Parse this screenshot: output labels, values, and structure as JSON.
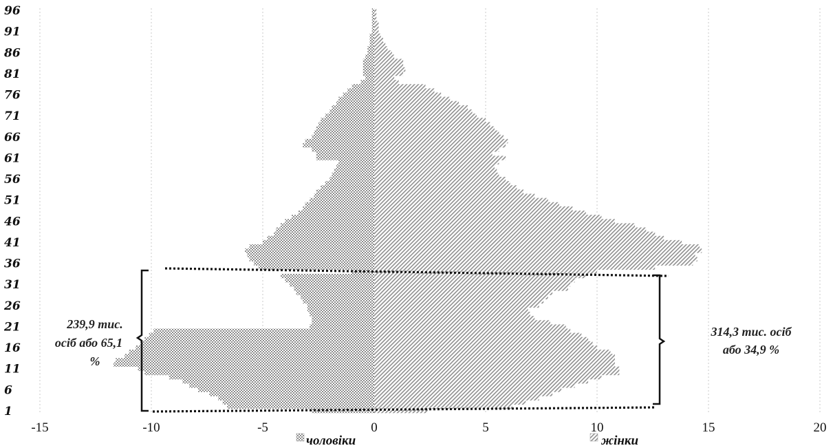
{
  "chart_data": {
    "type": "bar",
    "orientation": "horizontal",
    "style": "population-pyramid",
    "title": "",
    "xlabel": "",
    "ylabel": "",
    "xlim": [
      -15,
      20
    ],
    "x_ticks": [
      "-15",
      "-10",
      "-5",
      "0",
      "5",
      "10",
      "15",
      "20"
    ],
    "y_tick_labels": [
      "1",
      "6",
      "11",
      "16",
      "21",
      "26",
      "31",
      "36",
      "41",
      "46",
      "51",
      "56",
      "61",
      "66",
      "71",
      "76",
      "81",
      "86",
      "91",
      "96"
    ],
    "ages": [
      1,
      2,
      3,
      4,
      5,
      6,
      7,
      8,
      9,
      10,
      11,
      12,
      13,
      14,
      15,
      16,
      17,
      18,
      19,
      20,
      21,
      22,
      23,
      24,
      25,
      26,
      27,
      28,
      29,
      30,
      31,
      32,
      33,
      34,
      35,
      36,
      37,
      38,
      39,
      40,
      41,
      42,
      43,
      44,
      45,
      46,
      47,
      48,
      49,
      50,
      51,
      52,
      53,
      54,
      55,
      56,
      57,
      58,
      59,
      60,
      61,
      62,
      63,
      64,
      65,
      66,
      67,
      68,
      69,
      70,
      71,
      72,
      73,
      74,
      75,
      76,
      77,
      78,
      79,
      80,
      81,
      82,
      83,
      84,
      85,
      86,
      87,
      88,
      89,
      90,
      91,
      92,
      93,
      94,
      95,
      96
    ],
    "series": [
      {
        "name": "чоловіки",
        "values": [
          -2.8,
          -6.6,
          -6.8,
          -7.0,
          -7.4,
          -7.9,
          -8.3,
          -8.6,
          -9.2,
          -10.3,
          -10.6,
          -11.7,
          -11.6,
          -11.2,
          -11.0,
          -10.7,
          -10.5,
          -10.3,
          -10.1,
          -9.9,
          -2.9,
          -2.8,
          -2.8,
          -2.9,
          -3.0,
          -3.0,
          -3.2,
          -3.3,
          -3.5,
          -3.6,
          -3.8,
          -4.0,
          -4.2,
          -1.0,
          -5.2,
          -5.4,
          -5.6,
          -5.7,
          -5.8,
          -5.6,
          -5.0,
          -4.8,
          -4.5,
          -4.4,
          -4.2,
          -4.0,
          -3.7,
          -3.4,
          -3.2,
          -3.1,
          -2.9,
          -2.7,
          -2.6,
          -2.4,
          -2.2,
          -2.0,
          -1.9,
          -1.8,
          -1.7,
          -1.6,
          -2.6,
          -2.6,
          -2.8,
          -3.2,
          -3.1,
          -2.8,
          -2.7,
          -2.6,
          -2.5,
          -2.4,
          -2.2,
          -2.0,
          -1.9,
          -1.7,
          -1.6,
          -1.4,
          -1.2,
          -1.0,
          -0.6,
          -0.4,
          -0.5,
          -0.5,
          -0.5,
          -0.5,
          -0.4,
          -0.3,
          -0.3,
          -0.2,
          -0.2,
          -0.2,
          -0.1,
          -0.1,
          -0.1,
          -0.1,
          -0.1,
          -0.1
        ],
        "pattern": "checker"
      },
      {
        "name": "жінки",
        "values": [
          2.4,
          6.2,
          6.8,
          7.4,
          8.0,
          8.4,
          9.0,
          9.6,
          10.2,
          11.0,
          11.0,
          10.8,
          10.8,
          10.8,
          10.6,
          10.0,
          9.8,
          9.6,
          9.3,
          8.8,
          8.6,
          7.9,
          7.2,
          7.0,
          6.9,
          7.4,
          7.6,
          7.8,
          8.0,
          8.7,
          8.8,
          9.0,
          9.5,
          10.0,
          12.6,
          14.3,
          14.5,
          14.4,
          14.7,
          14.6,
          13.8,
          13.0,
          12.6,
          12.2,
          11.7,
          10.8,
          10.2,
          9.5,
          8.9,
          8.3,
          7.8,
          7.2,
          6.7,
          6.4,
          6.1,
          5.9,
          5.6,
          5.5,
          5.4,
          5.6,
          5.9,
          5.3,
          5.6,
          5.9,
          6.0,
          5.8,
          5.6,
          5.4,
          5.2,
          5.0,
          4.6,
          4.4,
          4.2,
          3.8,
          3.4,
          3.0,
          2.7,
          2.3,
          1.1,
          0.9,
          1.3,
          1.4,
          1.3,
          1.3,
          0.9,
          0.8,
          0.6,
          0.5,
          0.4,
          0.3,
          0.2,
          0.2,
          0.2,
          0.1,
          0.1,
          0.1
        ],
        "pattern": "diagonal"
      }
    ],
    "legend": {
      "placement": "bottom",
      "items": [
        "чоловіки",
        "жінки"
      ]
    },
    "annotations": [
      {
        "id": "left",
        "lines": [
          "239,9 тис.",
          "осіб або 65,1",
          "%"
        ]
      },
      {
        "id": "right",
        "lines": [
          "314,3 тис. осіб",
          "або 34,9 %"
        ]
      }
    ],
    "grid": "vertical-dotted",
    "colors": {
      "men": "#9a9a9a",
      "women": "#a8a8a8",
      "grid": "#c8c8c8",
      "axis": "#111111"
    }
  }
}
